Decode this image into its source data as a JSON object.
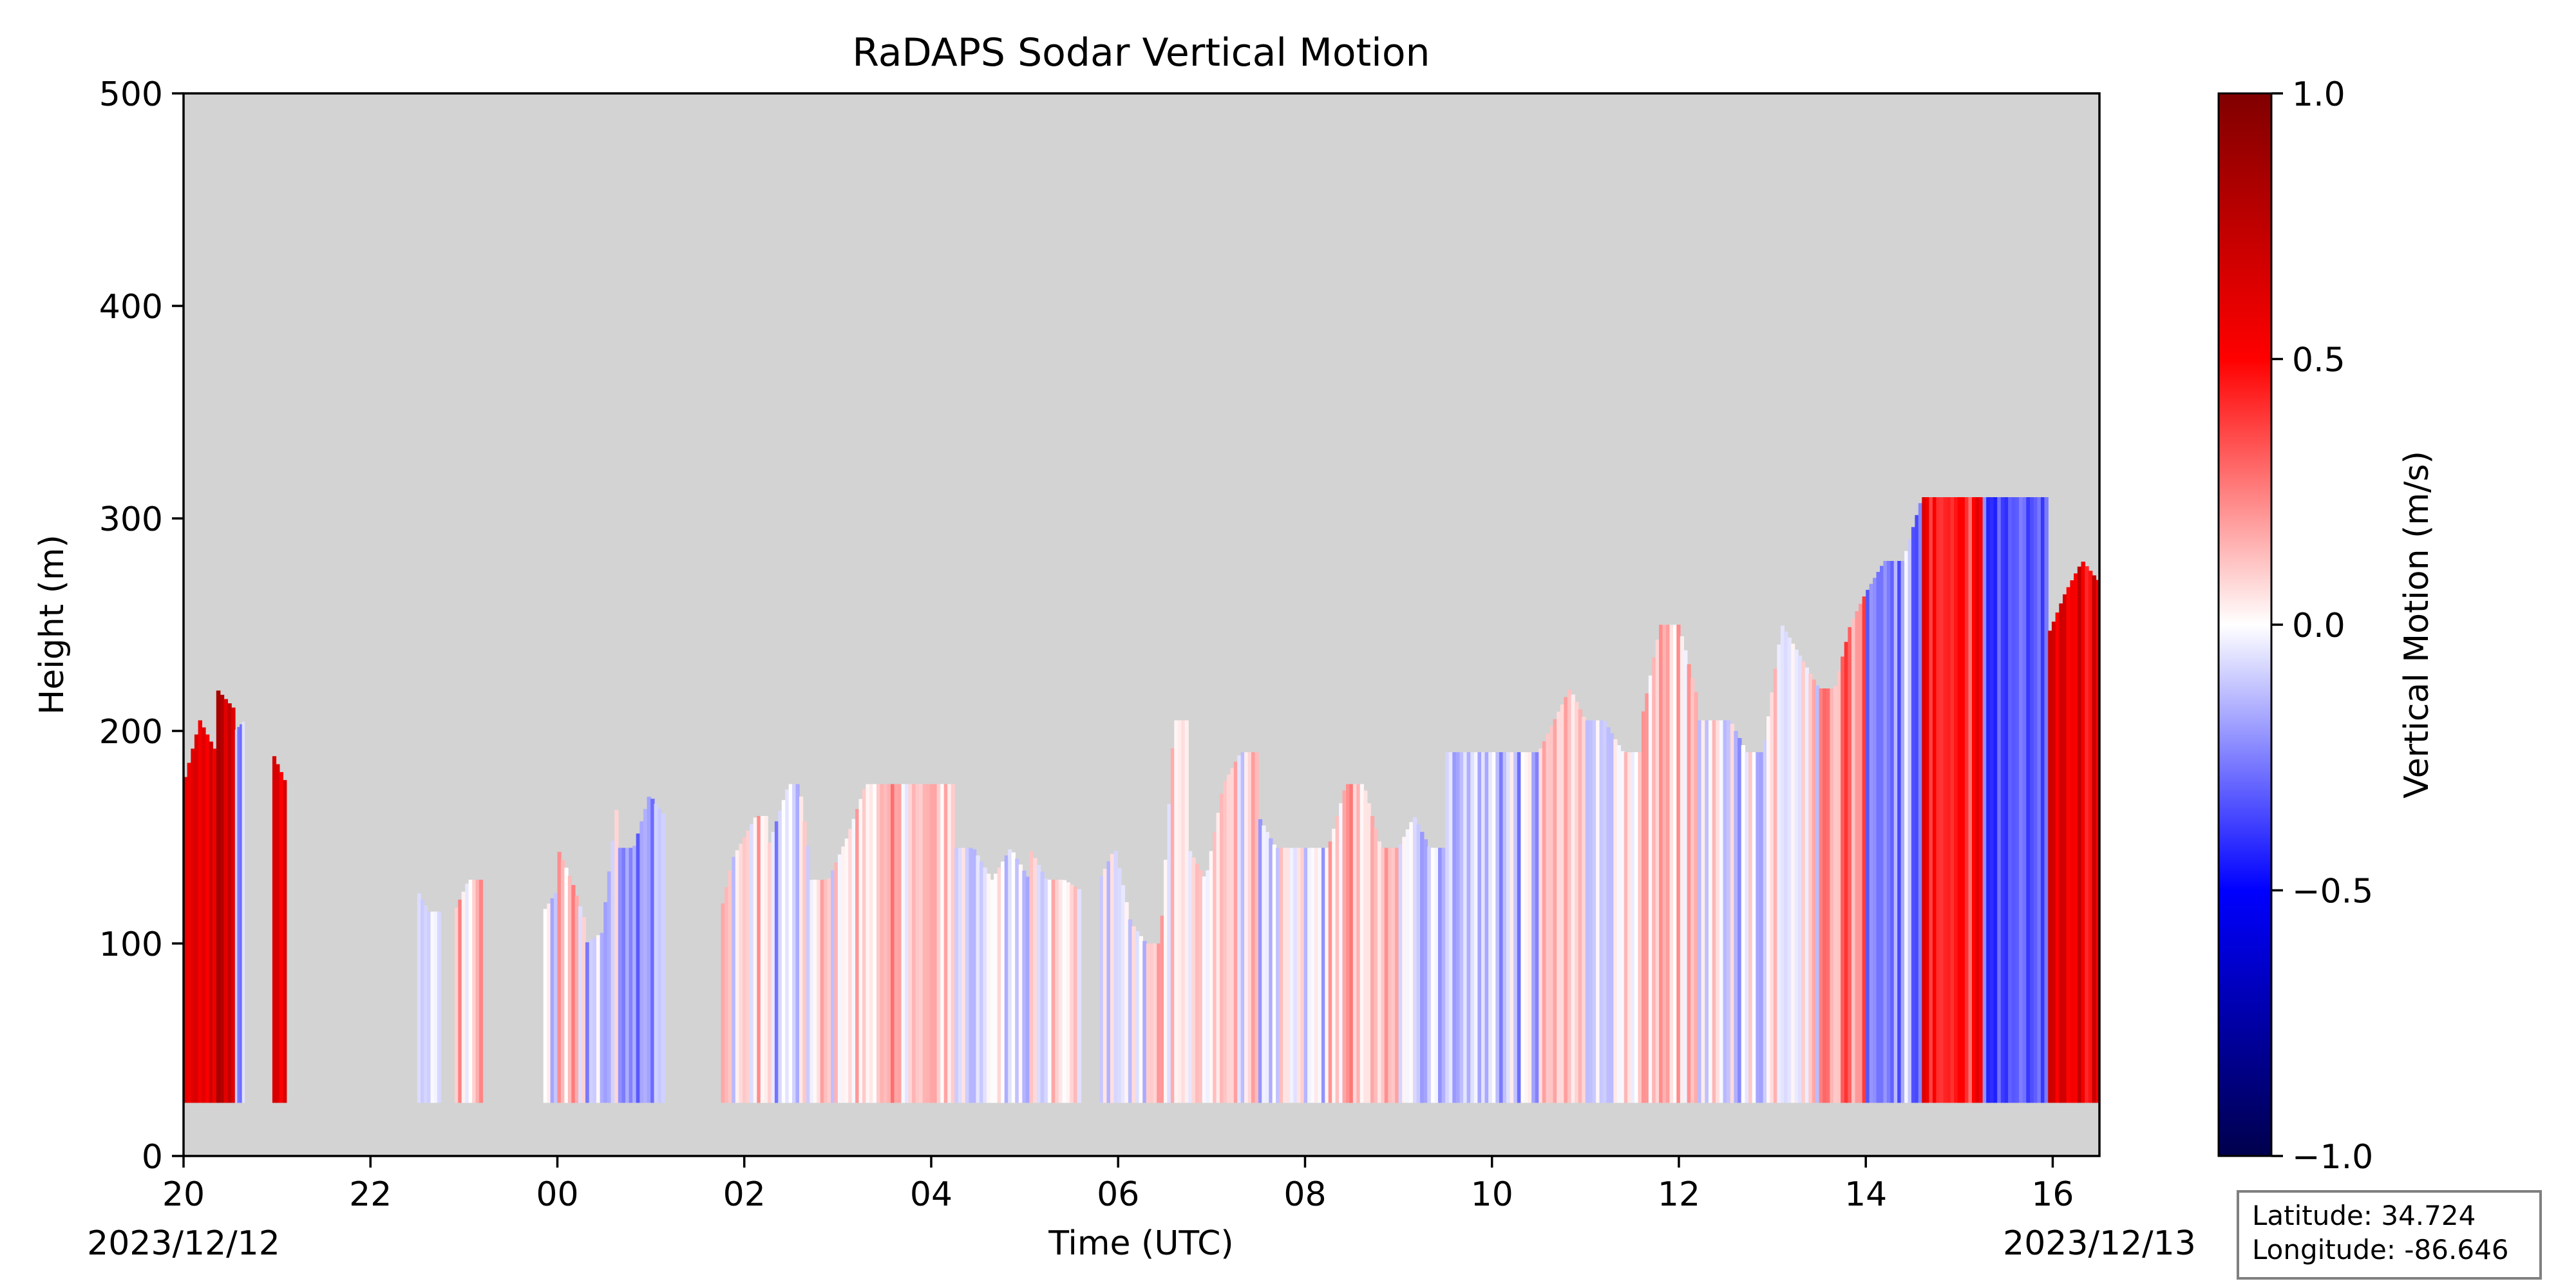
{
  "chart_data": {
    "type": "heatmap",
    "title": "RaDAPS Sodar Vertical Motion",
    "xlabel": "Time (UTC)",
    "ylabel": "Height (m)",
    "xlim_hours": [
      20,
      40.5
    ],
    "ylim": [
      0,
      500
    ],
    "x_ticks": [
      {
        "hour": 20,
        "label": "20"
      },
      {
        "hour": 22,
        "label": "22"
      },
      {
        "hour": 24,
        "label": "00"
      },
      {
        "hour": 26,
        "label": "02"
      },
      {
        "hour": 28,
        "label": "04"
      },
      {
        "hour": 30,
        "label": "06"
      },
      {
        "hour": 32,
        "label": "08"
      },
      {
        "hour": 34,
        "label": "10"
      },
      {
        "hour": 36,
        "label": "12"
      },
      {
        "hour": 38,
        "label": "14"
      },
      {
        "hour": 40,
        "label": "16"
      }
    ],
    "y_ticks": [
      0,
      100,
      200,
      300,
      400,
      500
    ],
    "date_start": "2023/12/12",
    "date_end": "2023/12/13",
    "background_color": "#d3d3d3",
    "colorbar": {
      "label": "Vertical Motion (m/s)",
      "range": [
        -1.0,
        1.0
      ],
      "ticks": [
        {
          "value": 1.0,
          "label": "1.0"
        },
        {
          "value": 0.5,
          "label": "0.5"
        },
        {
          "value": 0.0,
          "label": "0.0"
        },
        {
          "value": -0.5,
          "label": "−0.5"
        },
        {
          "value": -1.0,
          "label": "−1.0"
        }
      ],
      "colormap": "seismic"
    },
    "bottom_height_m": 25,
    "data_segments": [
      {
        "start": 20.0,
        "end": 20.35,
        "tops": [
          175,
          205,
          190
        ],
        "mean": 0.55
      },
      {
        "start": 20.35,
        "end": 20.55,
        "tops": [
          220,
          210
        ],
        "mean": 0.7
      },
      {
        "start": 20.55,
        "end": 20.65,
        "tops": [
          200,
          205
        ],
        "mean": -0.15
      },
      {
        "start": 20.95,
        "end": 21.1,
        "tops": [
          190,
          175
        ],
        "mean": 0.6
      },
      {
        "start": 22.5,
        "end": 22.75,
        "tops": [
          125,
          115,
          115
        ],
        "mean": -0.08
      },
      {
        "start": 22.9,
        "end": 23.2,
        "tops": [
          115,
          130,
          130
        ],
        "mean": 0.1
      },
      {
        "start": 23.85,
        "end": 24.0,
        "tops": [
          115,
          125
        ],
        "mean": -0.05
      },
      {
        "start": 24.0,
        "end": 24.3,
        "tops": [
          145,
          130,
          110
        ],
        "mean": 0.1
      },
      {
        "start": 24.3,
        "end": 24.65,
        "tops": [
          100,
          105,
          170
        ],
        "mean": -0.1
      },
      {
        "start": 24.65,
        "end": 25.15,
        "tops": [
          145,
          145,
          170,
          160
        ],
        "mean": -0.15
      },
      {
        "start": 25.75,
        "end": 26.25,
        "tops": [
          115,
          140,
          150,
          160,
          160
        ],
        "mean": 0.05
      },
      {
        "start": 26.25,
        "end": 26.7,
        "tops": [
          145,
          160,
          175,
          175,
          140
        ],
        "mean": -0.08
      },
      {
        "start": 26.7,
        "end": 27.3,
        "tops": [
          130,
          130,
          150,
          175
        ],
        "mean": 0.05
      },
      {
        "start": 27.3,
        "end": 28.25,
        "tops": [
          175,
          175,
          175,
          175,
          175
        ],
        "mean": 0.1
      },
      {
        "start": 28.25,
        "end": 29.05,
        "tops": [
          145,
          145,
          130,
          145,
          130
        ],
        "mean": -0.05
      },
      {
        "start": 29.05,
        "end": 29.6,
        "tops": [
          145,
          130,
          130,
          125
        ],
        "mean": 0.05
      },
      {
        "start": 29.8,
        "end": 30.3,
        "tops": [
          130,
          145,
          110,
          100
        ],
        "mean": -0.05
      },
      {
        "start": 30.3,
        "end": 30.75,
        "tops": [
          100,
          100,
          205,
          205
        ],
        "mean": 0.1
      },
      {
        "start": 30.75,
        "end": 31.5,
        "tops": [
          145,
          130,
          175,
          190,
          190
        ],
        "mean": 0.05
      },
      {
        "start": 31.5,
        "end": 32.25,
        "tops": [
          160,
          145,
          145,
          145,
          145
        ],
        "mean": -0.05
      },
      {
        "start": 32.25,
        "end": 33.0,
        "tops": [
          145,
          175,
          175,
          145,
          145
        ],
        "mean": 0.1
      },
      {
        "start": 33.0,
        "end": 33.5,
        "tops": [
          145,
          160,
          145,
          145
        ],
        "mean": -0.05
      },
      {
        "start": 33.5,
        "end": 34.5,
        "tops": [
          190,
          190,
          190,
          190,
          190
        ],
        "mean": -0.1
      },
      {
        "start": 34.5,
        "end": 35.0,
        "tops": [
          190,
          205,
          220,
          205
        ],
        "mean": 0.08
      },
      {
        "start": 35.0,
        "end": 35.6,
        "tops": [
          205,
          205,
          190,
          190
        ],
        "mean": -0.05
      },
      {
        "start": 35.6,
        "end": 36.2,
        "tops": [
          205,
          250,
          250,
          215
        ],
        "mean": 0.12
      },
      {
        "start": 36.2,
        "end": 36.9,
        "tops": [
          205,
          205,
          205,
          190,
          190
        ],
        "mean": -0.05
      },
      {
        "start": 36.9,
        "end": 37.5,
        "tops": [
          190,
          250,
          235,
          220
        ],
        "mean": 0.05
      },
      {
        "start": 37.5,
        "end": 38.0,
        "tops": [
          220,
          220,
          250,
          265
        ],
        "mean": 0.25
      },
      {
        "start": 38.0,
        "end": 38.6,
        "tops": [
          265,
          280,
          280,
          310
        ],
        "mean": -0.2
      },
      {
        "start": 38.6,
        "end": 39.25,
        "tops": [
          310,
          310,
          310,
          310
        ],
        "mean": 0.45
      },
      {
        "start": 39.25,
        "end": 39.95,
        "tops": [
          310,
          310,
          310,
          310
        ],
        "mean": -0.35
      },
      {
        "start": 39.95,
        "end": 40.5,
        "tops": [
          245,
          265,
          280,
          270
        ],
        "mean": 0.6
      }
    ]
  },
  "info_box": {
    "latitude": "Latitude: 34.724",
    "longitude": "Longitude: -86.646"
  }
}
